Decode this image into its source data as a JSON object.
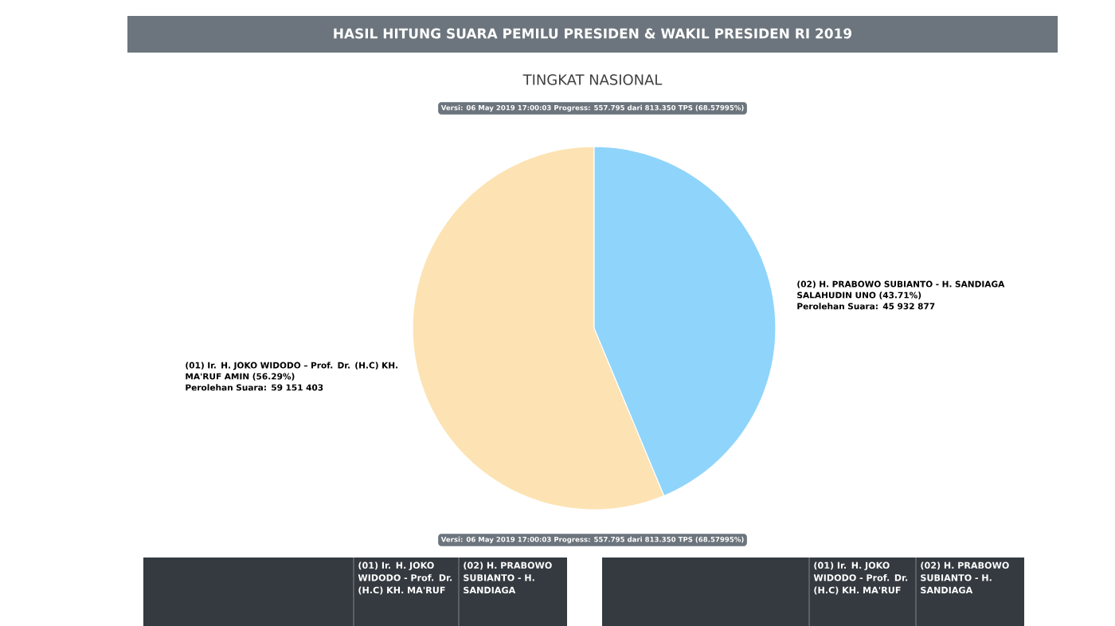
{
  "chart_data": {
    "type": "pie",
    "title": "HASIL HITUNG SUARA PEMILU PRESIDEN & WAKIL PRESIDEN RI 2019",
    "subtitle": "TINGKAT NASIONAL",
    "categories": [
      "(01) Ir. H. JOKO WIDODO – Prof. Dr. (H.C) KH. MA'RUF AMIN (56.29%)",
      "(02) H. PRABOWO SUBIANTO - H. SANDIAGA SALAHUDIN UNO (43.71%)"
    ],
    "values": [
      59151403,
      45932877
    ],
    "value_labels": [
      "Perolehan Suara: 59 151 403",
      "Perolehan Suara: 45 932 877"
    ],
    "colors": [
      "#fde3b3",
      "#8fd4fb"
    ],
    "legend": false,
    "annotations": [
      "Versi: 06 May 2019 17:00:03 Progress: 557.795 dari 813.350 TPS (68.57995%)",
      "Versi: 06 May 2019 17:00:03 Progress: 557.795 dari 813.350 TPS (68.57995%)",
      "(01) Ir. H. JOKO WIDODO - Prof. Dr. (H.C) KH. MA'RUF",
      "(02) H. PRABOWO SUBIANTO - H. SANDIAGA",
      "(01) Ir. H. JOKO WIDODO - Prof. Dr. (H.C) KH. MA'RUF",
      "(02) H. PRABOWO SUBIANTO - H. SANDIAGA"
    ]
  }
}
